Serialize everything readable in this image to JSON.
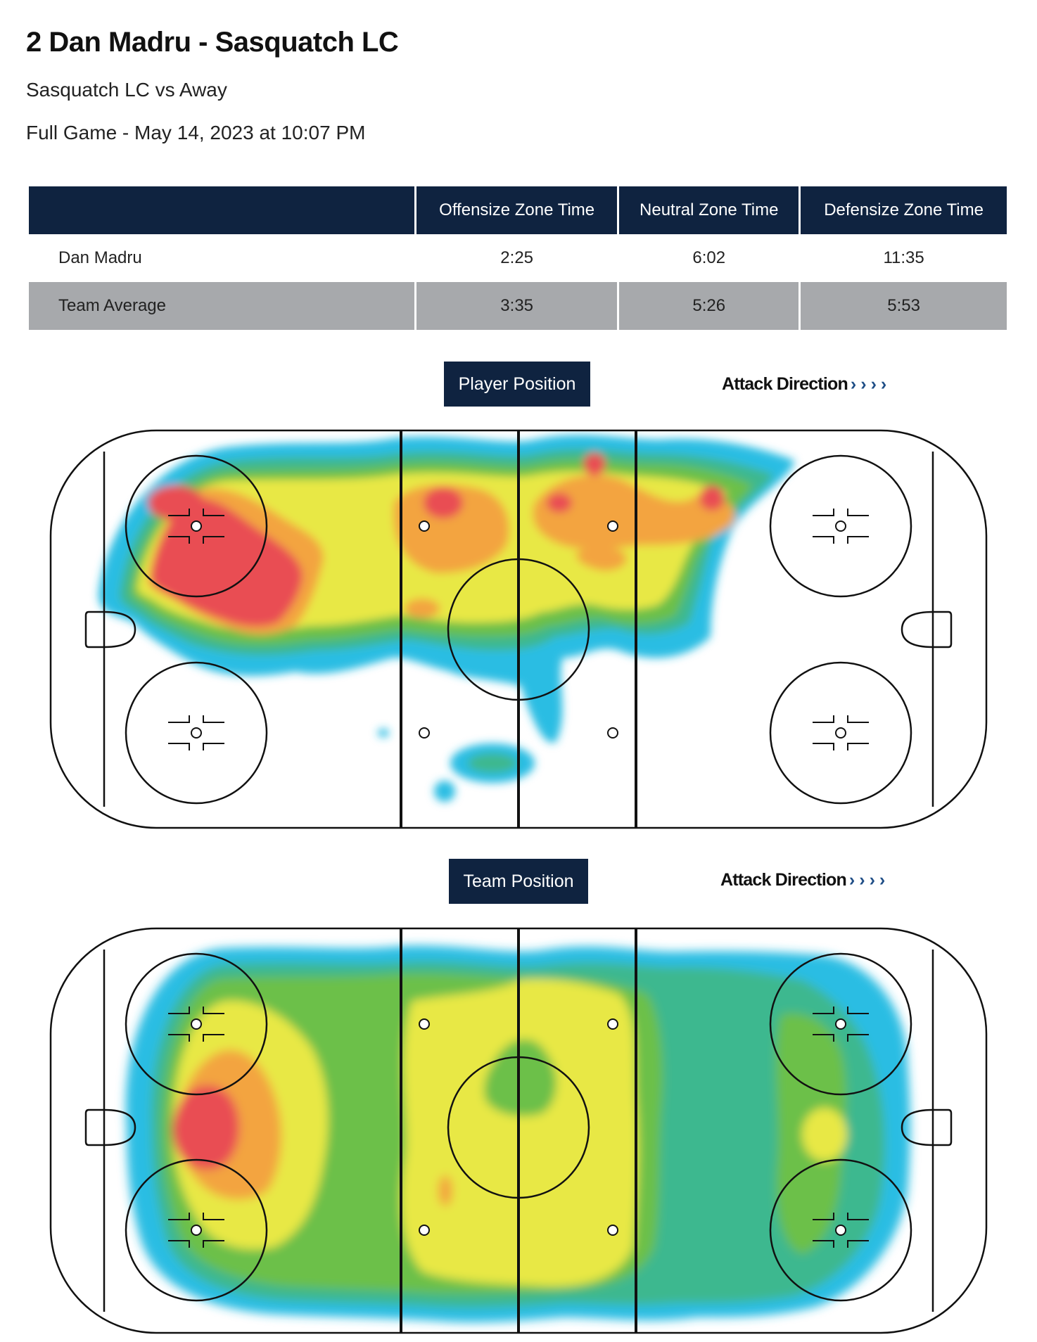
{
  "header": {
    "title": "2 Dan Madru - Sasquatch LC",
    "matchup": "Sasquatch LC vs Away",
    "game_info": "Full Game - May 14, 2023 at 10:07 PM"
  },
  "zone_table": {
    "columns": [
      "",
      "Offensize Zone Time",
      "Neutral Zone Time",
      "Defensize Zone Time"
    ],
    "rows": [
      {
        "label": "Dan Madru",
        "values": [
          "2:25",
          "6:02",
          "11:35"
        ]
      },
      {
        "label": "Team Average",
        "values": [
          "3:35",
          "5:26",
          "5:53"
        ]
      }
    ]
  },
  "player_map": {
    "label": "Player Position",
    "attack_direction": "Attack Direction",
    "arrows": "››››"
  },
  "team_map": {
    "label": "Team Position",
    "attack_direction": "Attack Direction",
    "arrows": "››››"
  },
  "colors": {
    "header_bg": "#0f2340",
    "row_avg_bg": "#a7a9ac",
    "heat_cyan": "#2bbde3",
    "heat_teal": "#3cb88f",
    "heat_green": "#6cc04a",
    "heat_yellow": "#e8e845",
    "heat_orange": "#f3a43f",
    "heat_red": "#e94e52"
  }
}
